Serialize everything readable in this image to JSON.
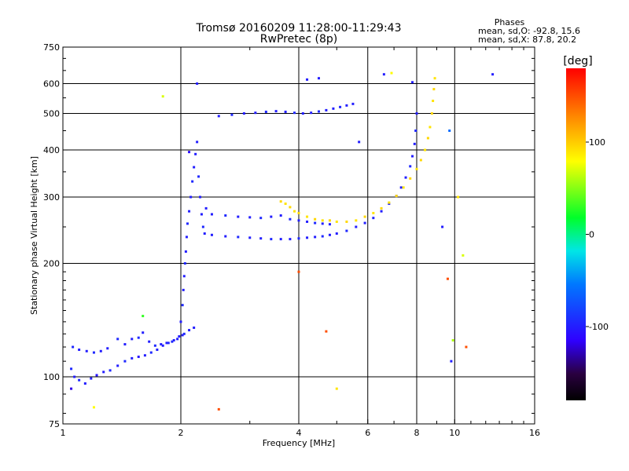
{
  "chart_data": {
    "type": "scatter",
    "title": "Tromsø 20160209 11:28:00-11:29:43",
    "subtitle": "RwPretec (8p)",
    "stats": {
      "heading": "Phases",
      "line_o": "mean, sd,O: -92.8, 15.6",
      "line_x": "mean, sd,X:  87.8, 20.2"
    },
    "xlabel": "Frequency [MHz]",
    "ylabel": "Stationary phase Virtual Height [km]",
    "xscale": "log",
    "yscale": "log",
    "xlim": [
      1,
      16
    ],
    "ylim": [
      75,
      750
    ],
    "xticks": [
      {
        "value": 1,
        "label": "1"
      },
      {
        "value": 2,
        "label": "2"
      },
      {
        "value": 4,
        "label": "4"
      },
      {
        "value": 6,
        "label": "6"
      },
      {
        "value": 8,
        "label": "8"
      },
      {
        "value": 10,
        "label": "10"
      },
      {
        "value": 16,
        "label": "16"
      }
    ],
    "yticks": [
      {
        "value": 75,
        "label": "75"
      },
      {
        "value": 100,
        "label": "100"
      },
      {
        "value": 200,
        "label": "200"
      },
      {
        "value": 300,
        "label": "300"
      },
      {
        "value": 400,
        "label": "400"
      },
      {
        "value": 500,
        "label": "500"
      },
      {
        "value": 600,
        "label": "600"
      },
      {
        "value": 750,
        "label": "750"
      }
    ],
    "grid": true,
    "colorbar": {
      "label": "[deg]",
      "range": [
        -180,
        180
      ],
      "ticks": [
        {
          "value": 100,
          "label": "100"
        },
        {
          "value": 0,
          "label": "0"
        },
        {
          "value": -100,
          "label": "-100"
        }
      ]
    },
    "trace_points": {
      "low_E_layer": [
        [
          1.05,
          105,
          -95
        ],
        [
          1.07,
          100,
          -100
        ],
        [
          1.1,
          98,
          -95
        ],
        [
          1.14,
          96,
          -100
        ],
        [
          1.18,
          99,
          -100
        ],
        [
          1.22,
          101,
          -105
        ],
        [
          1.27,
          103,
          -100
        ],
        [
          1.32,
          104,
          -95
        ],
        [
          1.38,
          107,
          -100
        ],
        [
          1.44,
          110,
          -95
        ],
        [
          1.5,
          112,
          -100
        ],
        [
          1.56,
          113,
          -105
        ],
        [
          1.62,
          114,
          -100
        ],
        [
          1.68,
          116,
          -95
        ],
        [
          1.74,
          118,
          -100
        ],
        [
          1.8,
          121,
          -100
        ],
        [
          1.86,
          123,
          -95
        ],
        [
          1.92,
          125,
          -100
        ],
        [
          1.98,
          128,
          -100
        ],
        [
          2.04,
          130,
          -95
        ],
        [
          2.1,
          133,
          -100
        ],
        [
          2.16,
          135,
          -100
        ]
      ],
      "spread_E_layer": [
        [
          1.06,
          120,
          -95
        ],
        [
          1.1,
          118,
          -100
        ],
        [
          1.15,
          117,
          -100
        ],
        [
          1.2,
          116,
          -95
        ],
        [
          1.25,
          117,
          -100
        ],
        [
          1.3,
          119,
          -100
        ],
        [
          1.38,
          126,
          -95
        ],
        [
          1.44,
          122,
          -100
        ],
        [
          1.5,
          126,
          -100
        ],
        [
          1.56,
          127,
          -95
        ],
        [
          1.6,
          131,
          -100
        ],
        [
          1.66,
          124,
          -100
        ],
        [
          1.72,
          121,
          -95
        ],
        [
          1.78,
          122,
          -100
        ],
        [
          1.84,
          123,
          -100
        ],
        [
          1.9,
          124,
          -95
        ],
        [
          1.96,
          126,
          -100
        ],
        [
          2.02,
          129,
          -100
        ]
      ],
      "F_rise_vertical": [
        [
          2.0,
          140,
          -100
        ],
        [
          2.02,
          155,
          -95
        ],
        [
          2.03,
          170,
          -100
        ],
        [
          2.04,
          185,
          -100
        ],
        [
          2.05,
          200,
          -95
        ],
        [
          2.06,
          215,
          -100
        ],
        [
          2.07,
          235,
          -100
        ],
        [
          2.08,
          255,
          -95
        ],
        [
          2.1,
          275,
          -100
        ],
        [
          2.12,
          300,
          -100
        ],
        [
          2.14,
          330,
          -95
        ],
        [
          2.16,
          360,
          -100
        ],
        [
          2.18,
          390,
          -100
        ],
        [
          2.2,
          420,
          -100
        ],
        [
          2.22,
          340,
          -95
        ],
        [
          2.24,
          300,
          -100
        ],
        [
          2.26,
          270,
          -100
        ],
        [
          2.28,
          250,
          -95
        ],
        [
          2.3,
          240,
          -100
        ],
        [
          2.32,
          280,
          -100
        ]
      ],
      "F_O_trace": [
        [
          2.4,
          238,
          -100
        ],
        [
          2.6,
          236,
          -100
        ],
        [
          2.8,
          235,
          -95
        ],
        [
          3.0,
          234,
          -100
        ],
        [
          3.2,
          233,
          -100
        ],
        [
          3.4,
          232,
          -95
        ],
        [
          3.6,
          232,
          -100
        ],
        [
          3.8,
          232,
          -100
        ],
        [
          4.0,
          233,
          -95
        ],
        [
          4.2,
          234,
          -100
        ],
        [
          4.4,
          235,
          -100
        ],
        [
          4.6,
          236,
          -95
        ],
        [
          4.8,
          238,
          -100
        ],
        [
          5.0,
          240,
          -100
        ],
        [
          5.3,
          244,
          -95
        ],
        [
          5.6,
          250,
          -100
        ],
        [
          5.9,
          256,
          -100
        ],
        [
          6.2,
          264,
          -95
        ],
        [
          6.5,
          275,
          -100
        ],
        [
          6.8,
          288,
          -100
        ],
        [
          7.1,
          302,
          -95
        ],
        [
          7.3,
          318,
          -100
        ],
        [
          7.5,
          338,
          -100
        ],
        [
          7.7,
          362,
          -95
        ],
        [
          7.8,
          385,
          -100
        ],
        [
          7.9,
          415,
          -100
        ],
        [
          7.95,
          450,
          -95
        ],
        [
          8.0,
          500,
          -100
        ]
      ],
      "F_upper_band": [
        [
          2.4,
          270,
          -100
        ],
        [
          2.6,
          268,
          -95
        ],
        [
          2.8,
          266,
          -100
        ],
        [
          3.0,
          265,
          -100
        ],
        [
          3.2,
          264,
          -95
        ],
        [
          3.4,
          266,
          -100
        ],
        [
          3.6,
          268,
          -100
        ],
        [
          3.8,
          262,
          -95
        ],
        [
          4.0,
          260,
          -100
        ],
        [
          4.2,
          258,
          -100
        ],
        [
          4.4,
          256,
          -95
        ],
        [
          4.6,
          255,
          -100
        ],
        [
          4.8,
          254,
          -100
        ]
      ],
      "F_multi_hop": [
        [
          2.5,
          492,
          -100
        ],
        [
          2.7,
          496,
          -95
        ],
        [
          2.9,
          500,
          -100
        ],
        [
          3.1,
          502,
          -100
        ],
        [
          3.3,
          505,
          -95
        ],
        [
          3.5,
          507,
          -100
        ],
        [
          3.7,
          505,
          -100
        ],
        [
          3.9,
          502,
          -95
        ],
        [
          4.1,
          500,
          -100
        ],
        [
          4.3,
          502,
          -100
        ],
        [
          4.5,
          506,
          -95
        ],
        [
          4.7,
          510,
          -100
        ],
        [
          4.9,
          515,
          -100
        ],
        [
          5.1,
          520,
          -95
        ],
        [
          5.3,
          525,
          -100
        ],
        [
          5.5,
          530,
          -100
        ]
      ],
      "F_X_trace": [
        [
          3.6,
          292,
          95
        ],
        [
          3.7,
          288,
          90
        ],
        [
          3.8,
          282,
          95
        ],
        [
          3.9,
          275,
          90
        ],
        [
          4.0,
          272,
          95
        ],
        [
          4.2,
          266,
          90
        ],
        [
          4.4,
          262,
          95
        ],
        [
          4.6,
          260,
          90
        ],
        [
          4.8,
          260,
          95
        ],
        [
          5.0,
          258,
          90
        ],
        [
          5.3,
          258,
          95
        ],
        [
          5.6,
          260,
          90
        ],
        [
          5.9,
          266,
          95
        ],
        [
          6.2,
          272,
          90
        ],
        [
          6.5,
          280,
          95
        ],
        [
          6.8,
          290,
          90
        ],
        [
          7.1,
          302,
          95
        ],
        [
          7.4,
          318,
          90
        ],
        [
          7.7,
          336,
          95
        ],
        [
          8.0,
          356,
          90
        ],
        [
          8.2,
          376,
          95
        ],
        [
          8.4,
          400,
          90
        ],
        [
          8.55,
          430,
          95
        ],
        [
          8.65,
          460,
          90
        ],
        [
          8.75,
          500,
          95
        ],
        [
          8.8,
          540,
          90
        ],
        [
          8.85,
          580,
          95
        ],
        [
          8.9,
          620,
          90
        ]
      ],
      "scattered": [
        [
          1.8,
          555,
          70
        ],
        [
          2.2,
          600,
          -100
        ],
        [
          2.1,
          395,
          -110
        ],
        [
          4.2,
          615,
          -100
        ],
        [
          6.6,
          635,
          -100
        ],
        [
          6.9,
          640,
          80
        ],
        [
          7.8,
          605,
          -100
        ],
        [
          4.5,
          620,
          -100
        ],
        [
          12.5,
          635,
          -100
        ],
        [
          1.6,
          145,
          30
        ],
        [
          1.05,
          93,
          -120
        ],
        [
          1.2,
          83,
          80
        ],
        [
          2.5,
          82,
          150
        ],
        [
          5.0,
          93,
          90
        ],
        [
          4.7,
          132,
          150
        ],
        [
          9.8,
          110,
          -100
        ],
        [
          10.7,
          120,
          150
        ],
        [
          9.6,
          182,
          150
        ],
        [
          9.9,
          125,
          60
        ],
        [
          10.2,
          300,
          90
        ],
        [
          10.5,
          210,
          70
        ],
        [
          9.7,
          450,
          -60
        ],
        [
          9.3,
          250,
          -100
        ],
        [
          5.7,
          420,
          -100
        ],
        [
          4.0,
          190,
          150
        ]
      ]
    }
  }
}
